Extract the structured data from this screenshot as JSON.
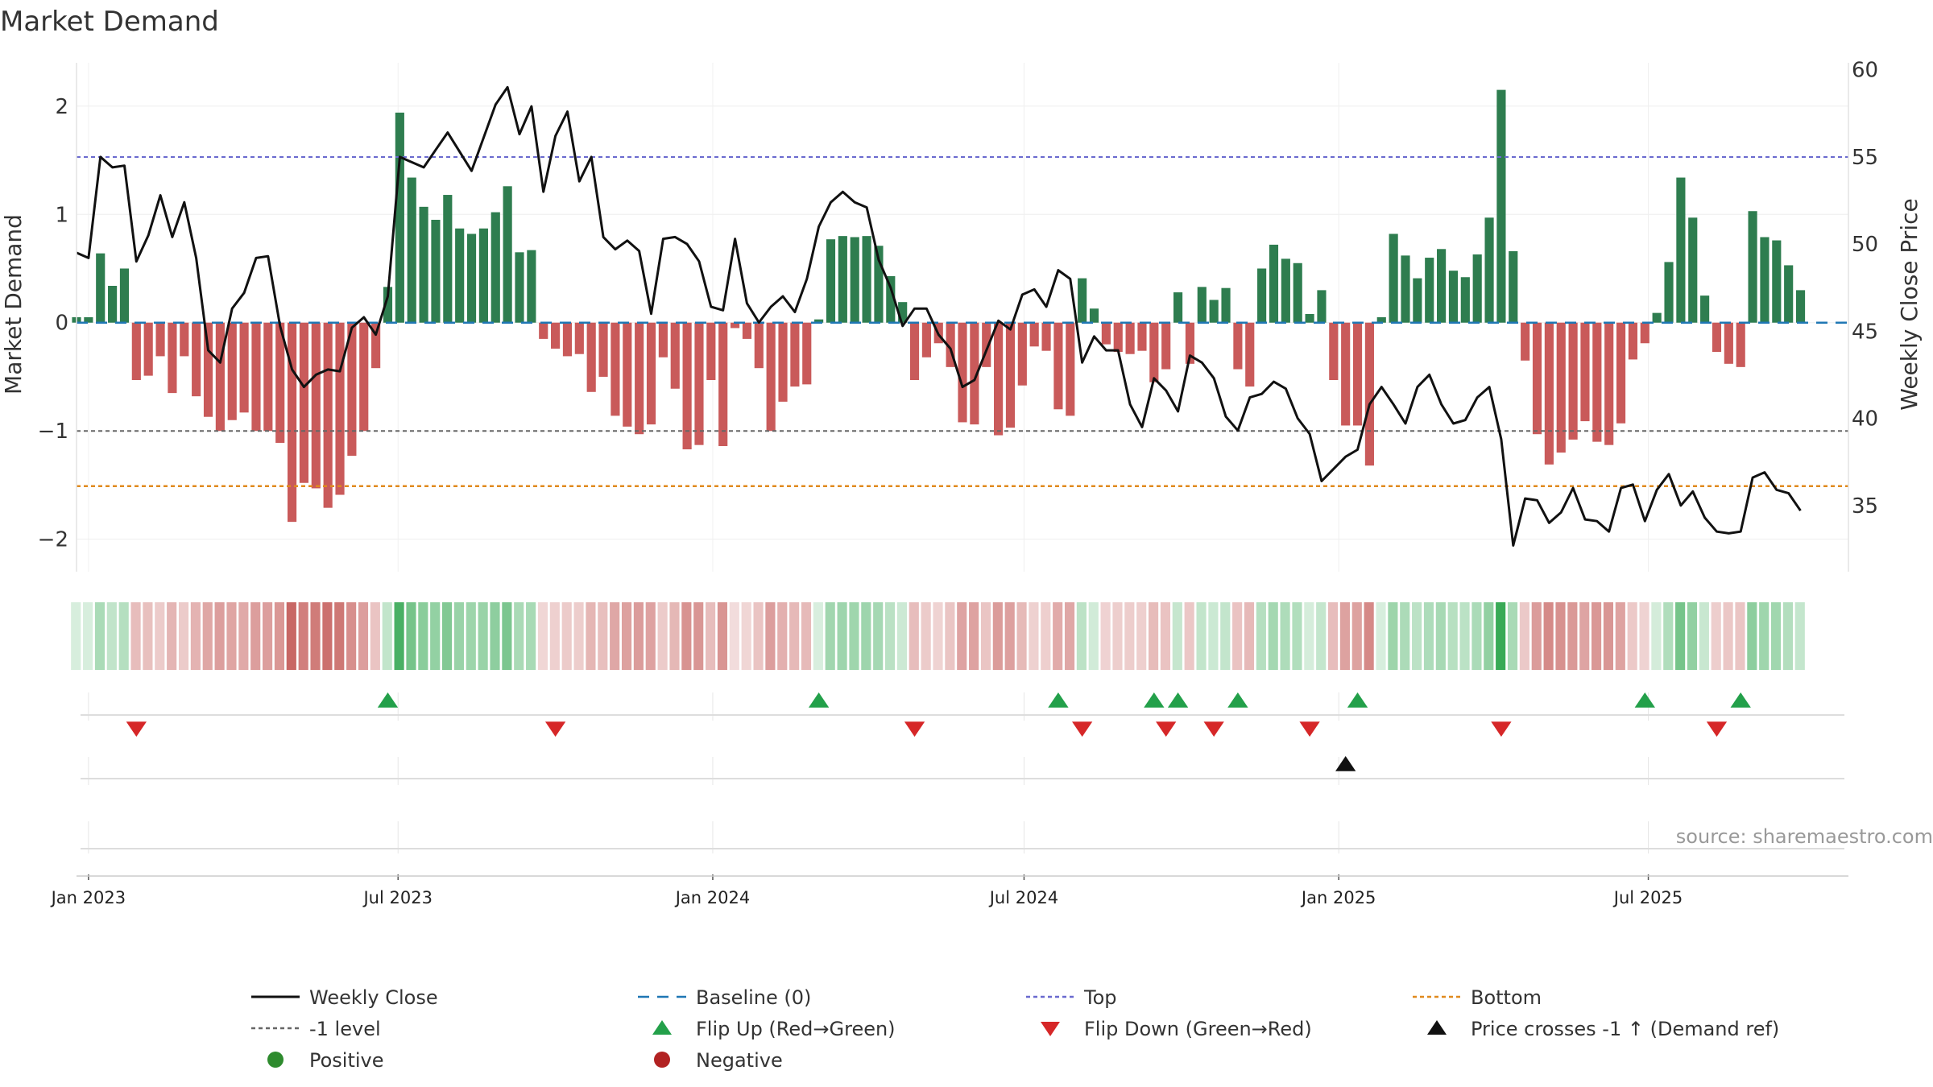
{
  "chart_data": {
    "type": "bar",
    "title": "Market Demand",
    "ylabel": "Market Demand",
    "y2label": "Weekly Close Price",
    "ylim": [
      -2.3,
      2.4
    ],
    "y2lim": [
      31.2,
      60.4
    ],
    "yticks": [
      -2,
      -1,
      0,
      1,
      2
    ],
    "yticklabels": [
      "−2",
      "−1",
      "0",
      "1",
      "2"
    ],
    "y2ticks": [
      35,
      40,
      45,
      50,
      55,
      60
    ],
    "y2ticklabels": [
      "35",
      "40",
      "45",
      "50",
      "55",
      "60"
    ],
    "x_start": "2022-12-25",
    "x_end": "2025-10-26",
    "xticks": [
      {
        "date": "2023-01-01",
        "label": "Jan 2023"
      },
      {
        "date": "2023-07-01",
        "label": "Jul 2023"
      },
      {
        "date": "2024-01-01",
        "label": "Jan 2024"
      },
      {
        "date": "2024-07-01",
        "label": "Jul 2024"
      },
      {
        "date": "2025-01-01",
        "label": "Jan 2025"
      },
      {
        "date": "2025-07-01",
        "label": "Jul 2025"
      }
    ],
    "first_week": "2022-12-25",
    "week_days": 7,
    "demand": [
      0.05,
      0.05,
      0.64,
      0.34,
      0.5,
      -0.53,
      -0.49,
      -0.31,
      -0.65,
      -0.31,
      -0.68,
      -0.87,
      -1.0,
      -0.9,
      -0.83,
      -1.0,
      -1.0,
      -1.11,
      -1.84,
      -1.48,
      -1.53,
      -1.71,
      -1.59,
      -1.23,
      -1.0,
      -0.42,
      0.33,
      1.94,
      1.34,
      1.07,
      0.95,
      1.18,
      0.87,
      0.82,
      0.87,
      1.02,
      1.26,
      0.65,
      0.67,
      -0.15,
      -0.24,
      -0.31,
      -0.29,
      -0.64,
      -0.5,
      -0.86,
      -0.96,
      -1.03,
      -0.94,
      -0.32,
      -0.61,
      -1.17,
      -1.13,
      -0.53,
      -1.14,
      -0.05,
      -0.15,
      -0.42,
      -1.0,
      -0.73,
      -0.59,
      -0.57,
      0.03,
      0.77,
      0.8,
      0.79,
      0.8,
      0.71,
      0.43,
      0.19,
      -0.53,
      -0.32,
      -0.19,
      -0.41,
      -0.92,
      -0.94,
      -0.41,
      -1.04,
      -0.97,
      -0.58,
      -0.22,
      -0.26,
      -0.8,
      -0.86,
      0.41,
      0.13,
      -0.2,
      -0.27,
      -0.29,
      -0.26,
      -0.55,
      -0.43,
      0.28,
      -0.38,
      0.33,
      0.21,
      0.32,
      -0.43,
      -0.59,
      0.5,
      0.72,
      0.59,
      0.55,
      0.08,
      0.3,
      -0.53,
      -0.95,
      -0.95,
      -1.32,
      0.05,
      0.82,
      0.62,
      0.41,
      0.6,
      0.68,
      0.48,
      0.42,
      0.63,
      0.97,
      2.15,
      0.66,
      -0.35,
      -1.03,
      -1.31,
      -1.2,
      -1.08,
      -0.91,
      -1.1,
      -1.13,
      -0.93,
      -0.34,
      -0.19,
      0.09,
      0.56,
      1.34,
      0.97,
      0.25,
      -0.27,
      -0.38,
      -0.41,
      1.03,
      0.79,
      0.76,
      0.53,
      0.3
    ],
    "close": [
      49.5,
      49.2,
      55.0,
      54.4,
      54.5,
      49.0,
      50.5,
      52.8,
      50.4,
      52.4,
      49.2,
      43.9,
      43.2,
      46.3,
      47.2,
      49.2,
      49.3,
      45.3,
      42.8,
      41.8,
      42.5,
      42.8,
      42.7,
      45.2,
      45.8,
      44.8,
      47.0,
      55.0,
      54.7,
      54.4,
      55.4,
      56.4,
      55.3,
      54.2,
      56.1,
      58.0,
      59.0,
      56.3,
      57.9,
      53.0,
      56.2,
      57.6,
      53.6,
      55.0,
      50.4,
      49.7,
      50.2,
      49.6,
      46.0,
      50.3,
      50.4,
      50.0,
      49.0,
      46.4,
      46.2,
      50.3,
      46.6,
      45.5,
      46.4,
      47.0,
      46.1,
      48.0,
      51.0,
      52.4,
      53.0,
      52.4,
      52.1,
      49.1,
      47.5,
      45.3,
      46.3,
      46.3,
      44.8,
      44.0,
      41.8,
      42.2,
      43.9,
      45.6,
      45.1,
      47.1,
      47.4,
      46.4,
      48.5,
      48.0,
      43.2,
      44.7,
      43.9,
      43.9,
      40.8,
      39.5,
      42.3,
      41.6,
      40.4,
      43.6,
      43.2,
      42.3,
      40.1,
      39.3,
      41.2,
      41.4,
      42.1,
      41.7,
      40.0,
      39.1,
      36.4,
      37.1,
      37.8,
      38.2,
      40.8,
      41.8,
      40.8,
      39.7,
      41.8,
      42.5,
      40.8,
      39.7,
      39.9,
      41.2,
      41.8,
      38.8,
      32.7,
      35.4,
      35.3,
      34.0,
      34.6,
      36.0,
      34.2,
      34.1,
      33.5,
      36.0,
      36.2,
      34.1,
      35.9,
      36.8,
      35.0,
      35.8,
      34.3,
      33.5,
      33.4,
      33.5,
      36.6,
      36.9,
      35.9,
      35.7,
      34.7
    ],
    "levels": {
      "top": 1.53,
      "minus_one": -1.0,
      "bottom": -1.51,
      "baseline": 0
    },
    "flip_up_weeks": [
      26,
      62,
      82,
      90,
      92,
      97,
      107,
      131,
      139
    ],
    "flip_down_weeks": [
      5,
      40,
      70,
      84,
      91,
      95,
      103,
      119,
      137
    ],
    "price_cross_weeks": [
      106
    ],
    "colors": {
      "positive": "#2E7D4F",
      "negative": "#C95A5A",
      "close": "#111111",
      "baseline": "#1F77B4",
      "top": "#6A6ACF",
      "minus_one": "#666666",
      "bottom": "#E08A1E",
      "flip_up": "#23A04A",
      "flip_down": "#D62728",
      "cross": "#111111"
    },
    "legend": [
      {
        "label": "Weekly Close",
        "kind": "line-solid",
        "color": "#111111"
      },
      {
        "label": "Baseline (0)",
        "kind": "line-dash",
        "color": "#1F77B4"
      },
      {
        "label": "Top",
        "kind": "line-dot",
        "color": "#6A6ACF"
      },
      {
        "label": "Bottom",
        "kind": "line-dot",
        "color": "#E08A1E"
      },
      {
        "label": "-1 level",
        "kind": "line-dot",
        "color": "#666666"
      },
      {
        "label": "Flip Up (Red→Green)",
        "kind": "tri-up",
        "color": "#23A04A"
      },
      {
        "label": "Flip Down (Green→Red)",
        "kind": "tri-down",
        "color": "#D62728"
      },
      {
        "label": "Price crosses -1 ↑ (Demand ref)",
        "kind": "tri-up",
        "color": "#111111"
      },
      {
        "label": "Positive",
        "kind": "dot",
        "color": "#2E8B2E"
      },
      {
        "label": "Negative",
        "kind": "dot",
        "color": "#B22222"
      }
    ],
    "legend_position": "bottom",
    "source": "source: sharemaestro.com"
  }
}
